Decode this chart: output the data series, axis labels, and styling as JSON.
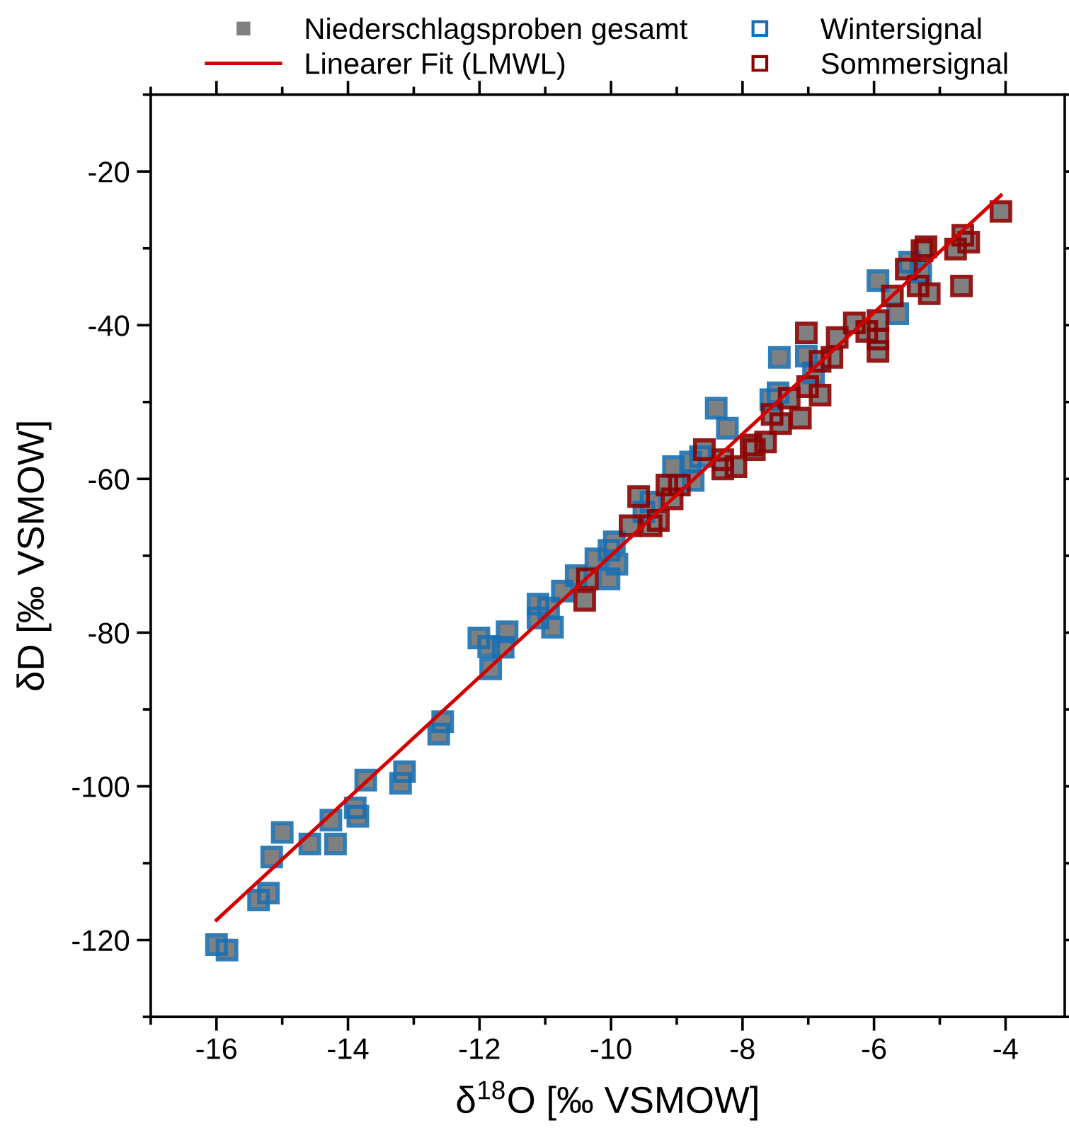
{
  "chart_data": {
    "type": "scatter",
    "xlabel": "δ$^{18}$O [‰ VSMOW]",
    "ylabel": "δD [‰ VSMOW]",
    "xlim": [
      -17,
      -3.1
    ],
    "ylim": [
      -130,
      -10
    ],
    "xticks": [
      -16,
      -14,
      -12,
      -10,
      -8,
      -6,
      -4
    ],
    "yticks": [
      -120,
      -100,
      -80,
      -60,
      -40,
      -20
    ],
    "grid": false,
    "legend": "top",
    "series": [
      {
        "name": "Niederschlagsproben gesamt",
        "type": "scatter",
        "marker": "square",
        "color": "#808080",
        "x": [
          -16.0,
          -15.84,
          -15.36,
          -15.21,
          -15.16,
          -15.0,
          -14.58,
          -14.26,
          -14.19,
          -13.89,
          -13.85,
          -13.73,
          -13.2,
          -13.14,
          -12.62,
          -12.56,
          -12.01,
          -11.86,
          -11.83,
          -11.64,
          -11.58,
          -11.11,
          -11.11,
          -10.95,
          -10.89,
          -10.74,
          -10.53,
          -10.23,
          -10.03,
          -9.95,
          -9.91,
          -10.03,
          -9.5,
          -9.39,
          -9.05,
          -8.75,
          -8.79,
          -8.64,
          -8.23,
          -8.4,
          -7.44,
          -7.03,
          -6.92,
          -7.46,
          -7.57,
          -5.46,
          -5.29,
          -5.94,
          -5.64,
          -10.4,
          -10.36,
          -9.71,
          -9.58,
          -9.39,
          -9.28,
          -9.15,
          -9.07,
          -8.96,
          -8.58,
          -8.3,
          -8.3,
          -8.1,
          -7.87,
          -7.82,
          -7.65,
          -7.42,
          -7.55,
          -7.12,
          -7.29,
          -6.82,
          -7.01,
          -6.82,
          -6.64,
          -6.56,
          -7.03,
          -6.3,
          -6.11,
          -5.94,
          -5.94,
          -5.94,
          -5.72,
          -5.51,
          -5.33,
          -5.16,
          -5.21,
          -5.27,
          -4.76,
          -4.65,
          -4.56,
          -4.67,
          -4.07
        ],
        "values": [
          -120.6,
          -121.3,
          -114.8,
          -113.9,
          -109.2,
          -106.0,
          -107.5,
          -104.4,
          -107.5,
          -102.8,
          -103.9,
          -99.2,
          -99.6,
          -98.1,
          -93.2,
          -91.6,
          -80.7,
          -81.8,
          -84.7,
          -81.9,
          -79.9,
          -76.3,
          -78.1,
          -76.8,
          -79.3,
          -74.6,
          -72.6,
          -70.4,
          -69.3,
          -68.2,
          -71.1,
          -73.0,
          -64.3,
          -63.0,
          -58.4,
          -60.2,
          -57.8,
          -57.1,
          -53.4,
          -50.8,
          -44.2,
          -44.0,
          -46.2,
          -48.8,
          -49.7,
          -31.8,
          -33.1,
          -34.2,
          -38.5,
          -75.8,
          -73.0,
          -66.1,
          -62.3,
          -66.1,
          -65.4,
          -60.8,
          -62.6,
          -60.8,
          -56.2,
          -57.5,
          -58.7,
          -58.4,
          -55.6,
          -56.2,
          -55.2,
          -52.8,
          -51.6,
          -52.1,
          -49.5,
          -49.1,
          -48.0,
          -44.7,
          -44.2,
          -41.6,
          -41.0,
          -39.7,
          -40.8,
          -39.4,
          -41.8,
          -43.4,
          -36.2,
          -32.7,
          -34.9,
          -35.9,
          -29.8,
          -30.3,
          -30.1,
          -28.3,
          -29.2,
          -34.9,
          -25.2
        ]
      },
      {
        "name": "Linearer Fit (LMWL)",
        "type": "line",
        "color": "#d40000",
        "x": [
          -16.0,
          -4.07
        ],
        "values": [
          -117.4,
          -23.1
        ]
      },
      {
        "name": "Wintersignal",
        "type": "scatter",
        "marker": "square",
        "color": "#1a6fb0",
        "x": [
          -16.0,
          -15.84,
          -15.36,
          -15.21,
          -15.16,
          -15.0,
          -14.58,
          -14.26,
          -14.19,
          -13.89,
          -13.85,
          -13.73,
          -13.2,
          -13.14,
          -12.62,
          -12.56,
          -12.01,
          -11.86,
          -11.83,
          -11.64,
          -11.58,
          -11.11,
          -11.11,
          -10.95,
          -10.89,
          -10.74,
          -10.53,
          -10.23,
          -10.03,
          -9.95,
          -9.91,
          -10.03,
          -9.5,
          -9.39,
          -9.05,
          -8.75,
          -8.79,
          -8.64,
          -8.23,
          -8.4,
          -7.44,
          -7.03,
          -6.92,
          -7.46,
          -7.57,
          -5.46,
          -5.29,
          -5.94,
          -5.64
        ],
        "values": [
          -120.6,
          -121.3,
          -114.8,
          -113.9,
          -109.2,
          -106.0,
          -107.5,
          -104.4,
          -107.5,
          -102.8,
          -103.9,
          -99.2,
          -99.6,
          -98.1,
          -93.2,
          -91.6,
          -80.7,
          -81.8,
          -84.7,
          -81.9,
          -79.9,
          -76.3,
          -78.1,
          -76.8,
          -79.3,
          -74.6,
          -72.6,
          -70.4,
          -69.3,
          -68.2,
          -71.1,
          -73.0,
          -64.3,
          -63.0,
          -58.4,
          -60.2,
          -57.8,
          -57.1,
          -53.4,
          -50.8,
          -44.2,
          -44.0,
          -46.2,
          -48.8,
          -49.7,
          -31.8,
          -33.1,
          -34.2,
          -38.5
        ]
      },
      {
        "name": "Sommersignal",
        "type": "scatter",
        "marker": "square",
        "color": "#8b0000",
        "x": [
          -10.4,
          -10.36,
          -9.71,
          -9.58,
          -9.39,
          -9.28,
          -9.15,
          -9.07,
          -8.96,
          -8.58,
          -8.3,
          -8.3,
          -8.1,
          -7.87,
          -7.82,
          -7.65,
          -7.42,
          -7.55,
          -7.12,
          -7.29,
          -6.82,
          -7.01,
          -6.82,
          -6.64,
          -6.56,
          -7.03,
          -6.3,
          -6.11,
          -5.94,
          -5.94,
          -5.94,
          -5.72,
          -5.51,
          -5.33,
          -5.16,
          -5.21,
          -5.27,
          -4.76,
          -4.65,
          -4.56,
          -4.67,
          -4.07
        ],
        "values": [
          -75.8,
          -73.0,
          -66.1,
          -62.3,
          -66.1,
          -65.4,
          -60.8,
          -62.6,
          -60.8,
          -56.2,
          -57.5,
          -58.7,
          -58.4,
          -55.6,
          -56.2,
          -55.2,
          -52.8,
          -51.6,
          -52.1,
          -49.5,
          -49.1,
          -48.0,
          -44.7,
          -44.2,
          -41.6,
          -41.0,
          -39.7,
          -40.8,
          -39.4,
          -41.8,
          -43.4,
          -36.2,
          -32.7,
          -34.9,
          -35.9,
          -29.8,
          -30.3,
          -30.1,
          -28.3,
          -29.2,
          -34.9,
          -25.2
        ]
      }
    ]
  }
}
